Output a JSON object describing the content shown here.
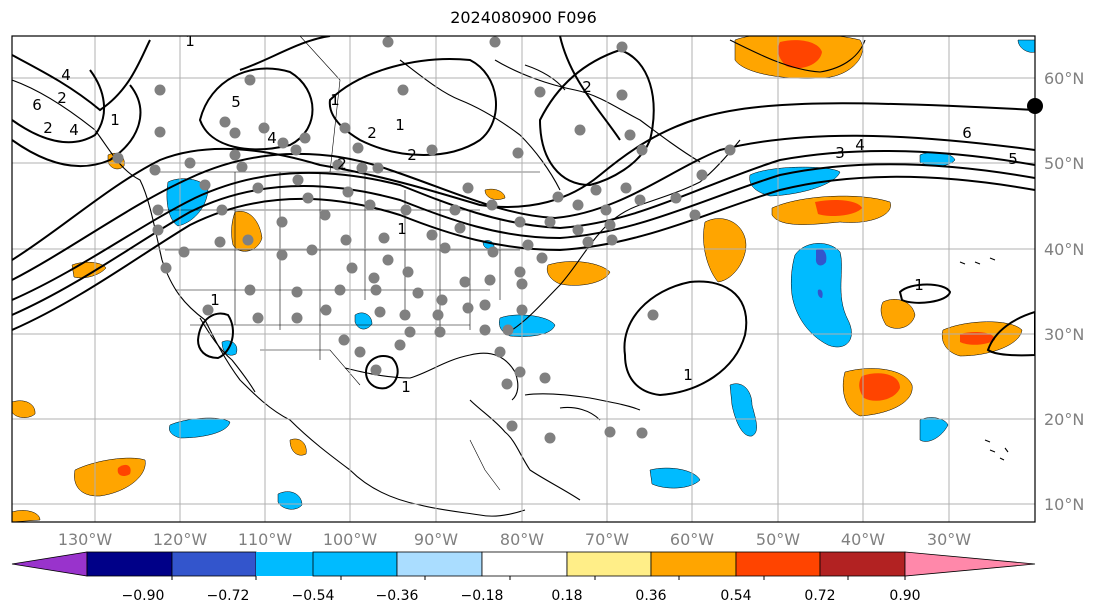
{
  "title": "2024080900 F096",
  "longitude_labels": [
    "130°W",
    "120°W",
    "110°W",
    "100°W",
    "90°W",
    "80°W",
    "70°W",
    "60°W",
    "50°W",
    "40°W",
    "30°W"
  ],
  "latitude_labels": [
    "60°N",
    "50°N",
    "40°N",
    "30°N",
    "20°N",
    "10°N"
  ],
  "colorbar": {
    "tick_labels": [
      "−0.90",
      "−0.72",
      "−0.54",
      "−0.36",
      "−0.18",
      "0.18",
      "0.36",
      "0.54",
      "0.72",
      "0.90"
    ],
    "colors": [
      "#9933cc",
      "#000088",
      "#3355cc",
      "#00bbff",
      "#aaddff",
      "#ffffff",
      "#ffee88",
      "#ffa500",
      "#ff4400",
      "#b22222",
      "#ff88aa"
    ]
  },
  "contour_labels": [
    "1",
    "4",
    "6",
    "4",
    "2",
    "2",
    "1",
    "5",
    "4",
    "1",
    "2",
    "1",
    "2",
    "1",
    "6",
    "4",
    "3",
    "5",
    "1",
    "1",
    "1",
    "2",
    "2",
    "1"
  ],
  "station_marker": "grey-dots"
}
